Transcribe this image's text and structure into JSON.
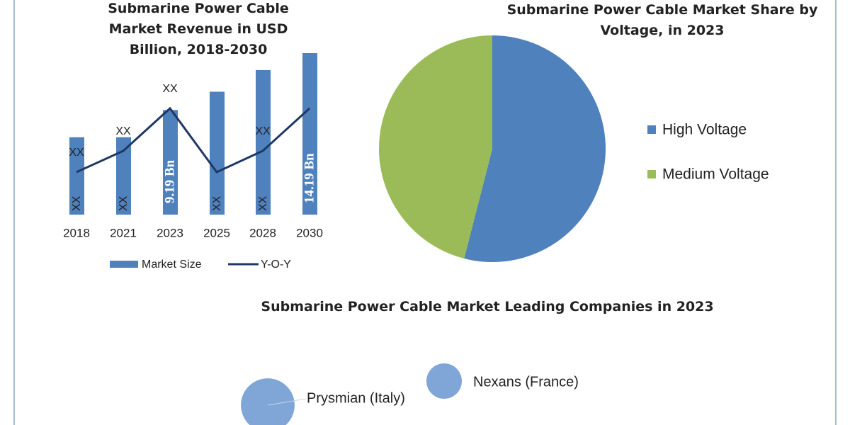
{
  "chart_data": [
    {
      "type": "bar",
      "title": "Submarine Power Cable Market Revenue in USD Billion, 2018-2030",
      "categories": [
        "2018",
        "2021",
        "2023",
        "2025",
        "2028",
        "2030"
      ],
      "series": [
        {
          "name": "Market Size",
          "type": "bar",
          "color": "#4f81bd",
          "values": [
            6.8,
            6.8,
            9.19,
            10.8,
            12.7,
            14.19
          ],
          "value_labels": [
            "XX",
            "XX",
            "9.19 Bn",
            "XX",
            "XX",
            "14.19 Bn"
          ]
        },
        {
          "name": "Y-O-Y",
          "type": "line",
          "color": "#1f3864",
          "values": [
            2,
            3,
            5,
            2,
            3,
            5
          ],
          "value_labels": [
            "XX",
            "XX",
            "XX",
            null,
            "XX",
            null
          ]
        }
      ]
    },
    {
      "type": "pie",
      "title": "Submarine Power Cable Market Share by Voltage, in 2023",
      "categories": [
        "High Voltage",
        "Medium Voltage"
      ],
      "values": [
        54,
        46
      ],
      "colors": [
        "#4f81bd",
        "#9bbb59"
      ]
    },
    {
      "type": "bubble",
      "title": "Submarine Power Cable Market Leading Companies in 2023",
      "categories": [
        "Prysmian (Italy)",
        "Nexans (France)"
      ],
      "values": [
        2.3,
        1
      ],
      "color": "#7fa6d6"
    }
  ]
}
